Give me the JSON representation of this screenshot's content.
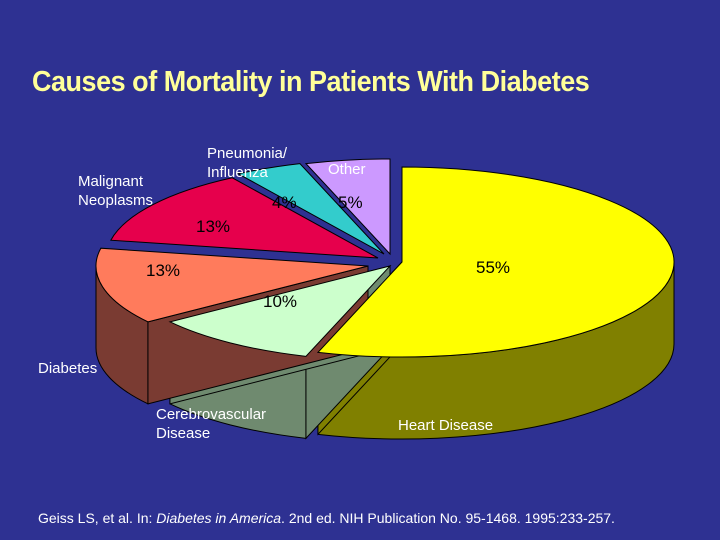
{
  "chart_data": {
    "type": "pie",
    "title": "Causes of Mortality in Patients With Diabetes",
    "slices": [
      {
        "key": "heart",
        "label": [
          "Heart Disease"
        ],
        "value": 55,
        "value_label": "55%",
        "color": "#ffff00",
        "side": "#808000"
      },
      {
        "key": "cerebro",
        "label": [
          "Cerebrovascular",
          "Disease"
        ],
        "value": 10,
        "value_label": "10%",
        "color": "#ccffcc",
        "side": "#6f8a6f"
      },
      {
        "key": "diabetes",
        "label": [
          "Diabetes"
        ],
        "value": 13,
        "value_label": "13%",
        "color": "#ff7b5c",
        "side": "#7a3b32"
      },
      {
        "key": "malignant",
        "label": [
          "Malignant",
          "Neoplasms"
        ],
        "value": 13,
        "value_label": "13%",
        "color": "#e6004c",
        "side": "#7a0028"
      },
      {
        "key": "pneumonia",
        "label": [
          "Pneumonia/",
          "Influenza"
        ],
        "value": 4,
        "value_label": "4%",
        "color": "#33cccc",
        "side": "#1b6b6b"
      },
      {
        "key": "other",
        "label": [
          "Other"
        ],
        "value": 5,
        "value_label": "5%",
        "color": "#cc99ff",
        "side": "#6b4f8a"
      }
    ]
  },
  "citation": {
    "authors": "Geiss LS, et al. In: ",
    "book": "Diabetes in America",
    "rest": ". 2nd ed. NIH Publication No. 95-1468. 1995:233-257."
  }
}
